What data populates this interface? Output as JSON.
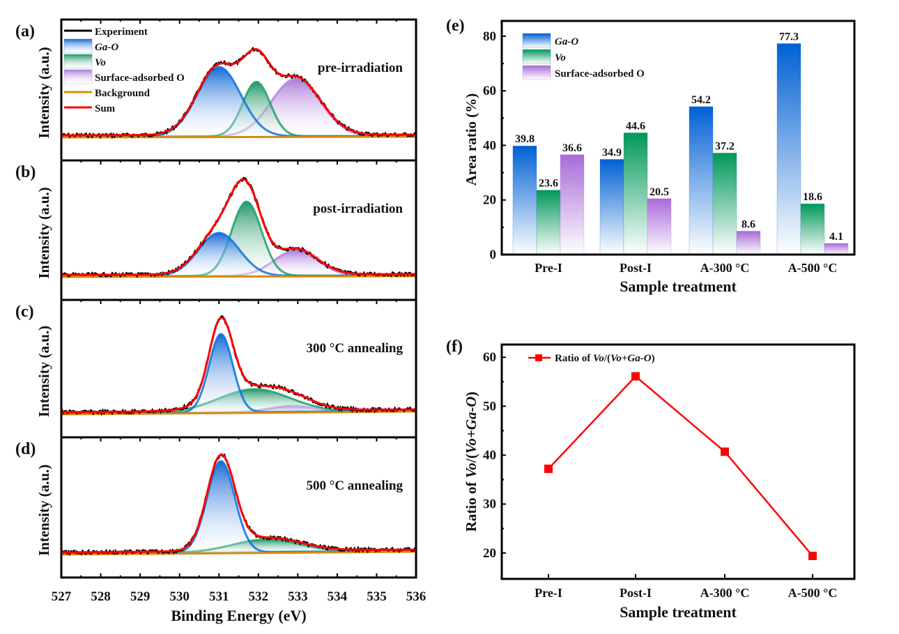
{
  "figure": {
    "panel_labels": [
      "(a)",
      "(b)",
      "(c)",
      "(d)",
      "(e)",
      "(f)"
    ]
  },
  "chart_data": [
    {
      "id": "xps",
      "type": "line",
      "panels": [
        {
          "label": "(a)",
          "annotation": "pre-irradiation",
          "peaks": {
            "ga_o": {
              "center": 531.0,
              "height": 0.7,
              "sigma": 0.55
            },
            "vo": {
              "center": 531.95,
              "height": 0.55,
              "sigma": 0.35
            },
            "surface_o": {
              "center": 532.95,
              "height": 0.58,
              "sigma": 0.62
            }
          }
        },
        {
          "label": "(b)",
          "annotation": "post-irradiation",
          "peaks": {
            "ga_o": {
              "center": 531.0,
              "height": 0.44,
              "sigma": 0.52
            },
            "vo": {
              "center": 531.7,
              "height": 0.76,
              "sigma": 0.38
            },
            "surface_o": {
              "center": 532.95,
              "height": 0.26,
              "sigma": 0.55
            }
          }
        },
        {
          "label": "(c)",
          "annotation": "300 °C annealing",
          "peaks": {
            "ga_o": {
              "center": 531.05,
              "height": 0.82,
              "sigma": 0.3
            },
            "vo": {
              "center": 531.9,
              "height": 0.24,
              "sigma": 0.9
            },
            "surface_o": {
              "center": 532.85,
              "height": 0.06,
              "sigma": 0.55
            }
          }
        },
        {
          "label": "(d)",
          "annotation": "500 °C annealing",
          "peaks": {
            "ga_o": {
              "center": 531.05,
              "height": 0.93,
              "sigma": 0.35
            },
            "vo": {
              "center": 532.2,
              "height": 0.13,
              "sigma": 0.85
            },
            "surface_o": {
              "center": 532.8,
              "height": 0.005,
              "sigma": 0.5
            }
          }
        }
      ],
      "xlabel": "Binding Energy (eV)",
      "ylabel": "Intensity (a.u.)",
      "xlim": [
        527,
        536
      ],
      "xticks": [
        527,
        528,
        529,
        530,
        531,
        532,
        533,
        534,
        535,
        536
      ],
      "legend": {
        "placement": "top-left",
        "entries": [
          {
            "key": "experiment",
            "label": "Experiment",
            "italic": false,
            "color": "#000000"
          },
          {
            "key": "ga_o",
            "label": "Ga-O",
            "italic": true,
            "color": "#0b63d6"
          },
          {
            "key": "vo",
            "label": "Vo",
            "italic": true,
            "color": "#1c9a66"
          },
          {
            "key": "surface_o",
            "label": "Surface-adsorbed O",
            "italic": false,
            "color": "#a874d8"
          },
          {
            "key": "background",
            "label": "Background",
            "italic": false,
            "color": "#d48c0e"
          },
          {
            "key": "sum",
            "label": "Sum",
            "italic": false,
            "color": "#ff0000"
          }
        ]
      }
    },
    {
      "id": "area-ratio",
      "type": "bar",
      "title": "",
      "categories": [
        "Pre-I",
        "Post-I",
        "A-300 °C",
        "A-500 °C"
      ],
      "series": [
        {
          "key": "ga_o",
          "name": "Ga-O",
          "italic": true,
          "color": "#0060d4",
          "values": [
            39.8,
            34.9,
            54.2,
            77.3
          ]
        },
        {
          "key": "vo",
          "name": "Vo",
          "italic": true,
          "color": "#00975a",
          "values": [
            23.6,
            44.6,
            37.2,
            18.6
          ]
        },
        {
          "key": "surface_o",
          "name": "Surface-adsorbed O",
          "italic": false,
          "color": "#a86ad8",
          "values": [
            36.6,
            20.5,
            8.6,
            4.1
          ]
        }
      ],
      "data_labels": [
        [
          "39.8",
          "23.6",
          "36.6"
        ],
        [
          "34.9",
          "44.6",
          "20.5"
        ],
        [
          "54.2",
          "37.2",
          "8.6"
        ],
        [
          "77.3",
          "18.6",
          "4.1"
        ]
      ],
      "xlabel": "Sample treatment",
      "ylabel": "Area ratio (%)",
      "ylim": [
        0,
        85.6
      ],
      "yticks": [
        0,
        20,
        40,
        60,
        80
      ],
      "legend": {
        "placement": "top-left"
      }
    },
    {
      "id": "vo-ratio",
      "type": "line",
      "categories": [
        "Pre-I",
        "Post-I",
        "A-300 °C",
        "A-500 °C"
      ],
      "series": [
        {
          "name_prefix": "Ratio of ",
          "name_italic": "Vo",
          "name_mid": "/(",
          "name_italic2": "Vo+Ga-O",
          "name_suffix": ")",
          "color": "#ff0000",
          "marker": "square",
          "values": [
            37.2,
            56.1,
            40.7,
            19.4
          ]
        }
      ],
      "xlabel": "Sample treatment",
      "ylabel_prefix": "Ratio of ",
      "ylabel_italic": "Vo",
      "ylabel_mid": "/(",
      "ylabel_italic2": "Vo+Ga-O",
      "ylabel_suffix": ")",
      "ylim": [
        14.7,
        62.6
      ],
      "yticks": [
        20,
        30,
        40,
        50,
        60
      ],
      "legend": {
        "placement": "top-left"
      }
    }
  ]
}
